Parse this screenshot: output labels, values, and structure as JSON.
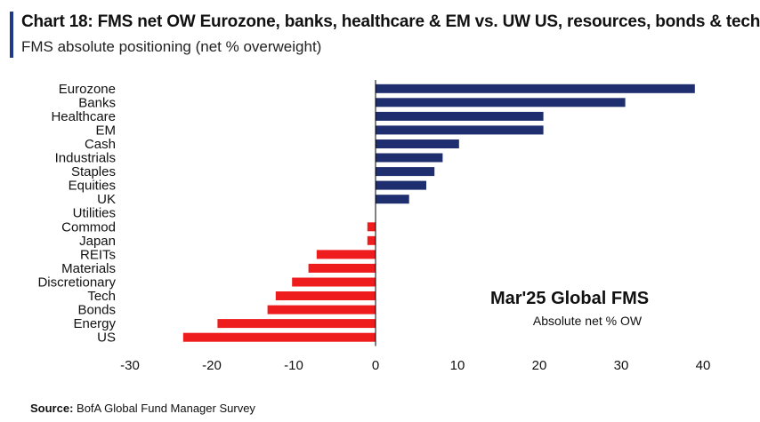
{
  "header": {
    "title": "Chart 18: FMS net OW Eurozone, banks, healthcare & EM vs. UW US, resources, bonds & tech",
    "subtitle": "FMS absolute positioning (net % overweight)"
  },
  "source": {
    "label": "Source:",
    "text": "BofA Global Fund Manager Survey"
  },
  "colors": {
    "positive": "#1f2e6e",
    "negative": "#ee1c1c",
    "accent": "#1f3a8a"
  },
  "chart_data": {
    "type": "bar",
    "orientation": "horizontal",
    "title": "",
    "xlabel": "",
    "ylabel": "",
    "xlim": [
      -30,
      40
    ],
    "xticks": [
      -30,
      -20,
      -10,
      0,
      10,
      20,
      30,
      40
    ],
    "grid": false,
    "categories": [
      "Eurozone",
      "Banks",
      "Healthcare",
      "EM",
      "Cash",
      "Industrials",
      "Staples",
      "Equities",
      "UK",
      "Utilities",
      "Commod",
      "Japan",
      "REITs",
      "Materials",
      "Discretionary",
      "Tech",
      "Bonds",
      "Energy",
      "US"
    ],
    "values": [
      39,
      30.5,
      20.5,
      20.5,
      10.2,
      8.2,
      7.2,
      6.2,
      4.1,
      0,
      -1,
      -1,
      -7.2,
      -8.2,
      -10.2,
      -12.2,
      -13.2,
      -19.3,
      -23.5
    ],
    "annotations": {
      "title": "Mar'25 Global FMS",
      "subtitle": "Absolute net % OW"
    }
  }
}
